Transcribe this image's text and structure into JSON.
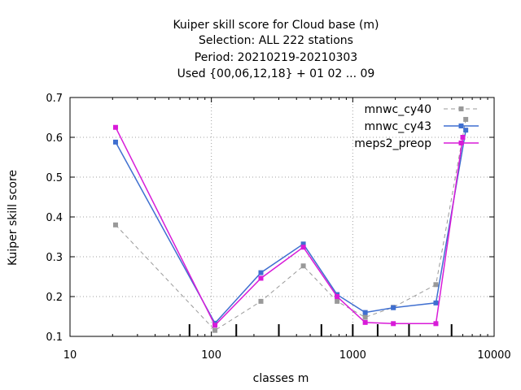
{
  "chart_data": {
    "type": "line",
    "title_lines": [
      "Kuiper skill score  for Cloud base (m)",
      "Selection: ALL    222 stations",
      "Period: 20210219-20210303",
      "Used {00,06,12,18} + 01 02 ... 09"
    ],
    "xlabel": "classes m",
    "ylabel": "Kuiper skill score",
    "x_scale": "log",
    "xlim": [
      10,
      10000
    ],
    "ylim": [
      0.1,
      0.7
    ],
    "x_ticks": [
      10,
      100,
      1000,
      10000
    ],
    "x_tick_labels": [
      "10",
      "100",
      "1000",
      "10000"
    ],
    "y_ticks": [
      0.1,
      0.2,
      0.3,
      0.4,
      0.5,
      0.6,
      0.7
    ],
    "y_tick_labels": [
      "0.1",
      "0.2",
      "0.3",
      "0.4",
      "0.5",
      "0.6",
      "0.7"
    ],
    "grid": true,
    "legend_position": "top-right",
    "class_boundaries": [
      70,
      150,
      300,
      600,
      1000,
      1500,
      2500,
      5000
    ],
    "series": [
      {
        "name": "mnwc_cy40",
        "color": "#999999",
        "dash": true,
        "points": [
          [
            21,
            0.38
          ],
          [
            106,
            0.115
          ],
          [
            224,
            0.188
          ],
          [
            447,
            0.277
          ],
          [
            775,
            0.188
          ],
          [
            1225,
            0.148
          ],
          [
            1936,
            0.173
          ],
          [
            3873,
            0.23
          ],
          [
            6300,
            0.645
          ]
        ]
      },
      {
        "name": "mnwc_cy43",
        "color": "#3f6fd0",
        "dash": false,
        "points": [
          [
            21,
            0.588
          ],
          [
            106,
            0.133
          ],
          [
            224,
            0.26
          ],
          [
            447,
            0.332
          ],
          [
            775,
            0.205
          ],
          [
            1225,
            0.16
          ],
          [
            1936,
            0.172
          ],
          [
            3873,
            0.184
          ],
          [
            6300,
            0.618
          ]
        ]
      },
      {
        "name": "meps2_preop",
        "color": "#d81bd8",
        "dash": false,
        "points": [
          [
            21,
            0.625
          ],
          [
            106,
            0.128
          ],
          [
            224,
            0.246
          ],
          [
            447,
            0.324
          ],
          [
            775,
            0.2
          ],
          [
            1225,
            0.135
          ],
          [
            1936,
            0.132
          ],
          [
            3873,
            0.132
          ],
          [
            6000,
            0.6
          ]
        ]
      }
    ]
  }
}
